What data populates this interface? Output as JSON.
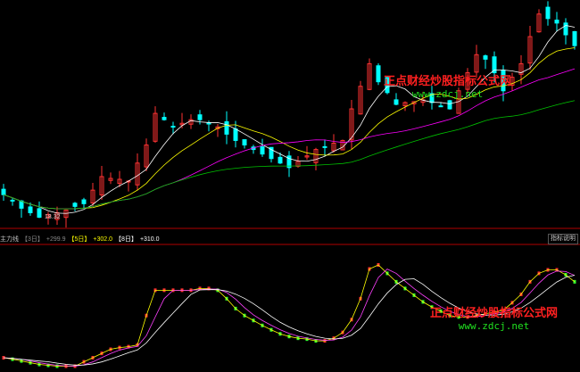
{
  "chart_data": [
    {
      "type": "candlestick",
      "ylim": [
        18.0,
        30.1
      ],
      "grid": false,
      "closes": [
        19.57,
        19.22,
        18.82,
        18.57,
        18.32,
        18.47,
        18.57,
        18.72,
        18.92,
        19.07,
        19.82,
        20.57,
        20.47,
        20.42,
        20.32,
        21.32,
        22.32,
        24.07,
        23.72,
        23.32,
        23.52,
        23.72,
        23.72,
        23.52,
        23.32,
        22.92,
        22.57,
        22.32,
        22.07,
        21.82,
        21.57,
        21.32,
        21.07,
        21.42,
        21.72,
        22.07,
        22.22,
        22.42,
        22.57,
        24.32,
        25.57,
        26.82,
        25.82,
        25.22,
        24.57,
        24.67,
        24.72,
        24.82,
        24.67,
        24.47,
        24.32,
        25.32,
        26.32,
        27.32,
        27.07,
        26.32,
        25.32,
        26.07,
        26.82,
        28.32,
        29.57,
        29.32,
        29.07,
        28.42,
        27.82
      ],
      "low_label": "18.32",
      "ma_colors": [
        "#ffffff",
        "#ffff00",
        "#ff00ff",
        "#00c000"
      ]
    },
    {
      "type": "line",
      "name": "主力线",
      "ylim": [
        0,
        420
      ],
      "values": [
        49,
        44,
        38,
        32,
        26,
        23,
        20,
        20,
        20,
        35,
        49,
        64,
        78,
        84,
        87,
        93,
        194,
        281,
        281,
        281,
        281,
        281,
        287,
        287,
        281,
        252,
        218,
        194,
        177,
        160,
        145,
        131,
        122,
        116,
        113,
        107,
        107,
        116,
        136,
        180,
        252,
        354,
        368,
        339,
        310,
        287,
        264,
        241,
        223,
        209,
        194,
        189,
        189,
        194,
        200,
        206,
        212,
        238,
        267,
        310,
        339,
        351,
        351,
        334,
        310
      ],
      "legend": [
        {
          "label": "【3日】",
          "value": "+299.9"
        },
        {
          "label": "【5日】",
          "value": "+302.0"
        },
        {
          "label": "【8日】",
          "value": "+310.0"
        }
      ]
    }
  ],
  "watermark": {
    "title": "正点财经炒股指标公式网",
    "url": "www.zdcj.net"
  },
  "indicator_button": "指标说明",
  "colors": {
    "up": "#ff3232",
    "down": "#00ffff",
    "divider": "#b00000"
  }
}
